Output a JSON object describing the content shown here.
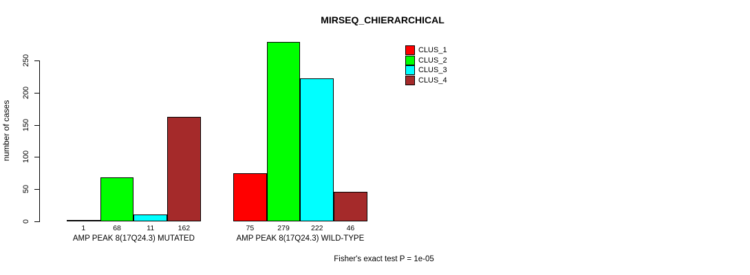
{
  "title": "MIRSEQ_CHIERARCHICAL",
  "footer": "Fisher's exact test P = 1e-05",
  "chart_data": {
    "type": "bar",
    "title": "MIRSEQ_CHIERARCHICAL",
    "xlabel": "",
    "ylabel": "number of cases",
    "categories": [
      "AMP PEAK 8(17Q24.3) MUTATED",
      "AMP PEAK 8(17Q24.3) WILD-TYPE"
    ],
    "series": [
      {
        "name": "CLUS_1",
        "color": "#ff0000",
        "values": [
          1,
          75
        ]
      },
      {
        "name": "CLUS_2",
        "color": "#00ff00",
        "values": [
          68,
          279
        ]
      },
      {
        "name": "CLUS_3",
        "color": "#00ffff",
        "values": [
          11,
          222
        ]
      },
      {
        "name": "CLUS_4",
        "color": "#a52a2a",
        "values": [
          162,
          46
        ]
      }
    ],
    "bar_value_labels_shown": true,
    "yticks": [
      0,
      50,
      100,
      150,
      200,
      250
    ],
    "ylim": [
      0,
      280
    ],
    "grid": false,
    "legend_position": "top-right",
    "annotation": "Fisher's exact test P = 1e-05"
  }
}
